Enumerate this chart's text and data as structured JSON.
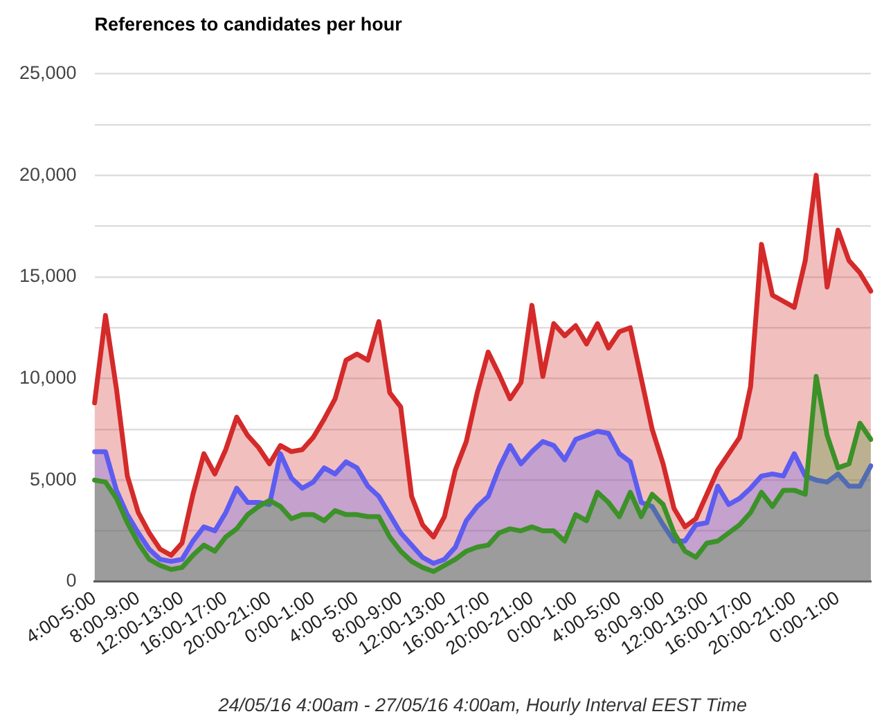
{
  "chart_data": {
    "type": "area",
    "title": "References to candidates per hour",
    "xlabel": "24/05/16 4:00am - 27/05/16 4:00am, Hourly Interval EEST Time",
    "categories": [
      "4:00-5:00",
      null,
      null,
      null,
      "8:00-9:00",
      null,
      null,
      null,
      "12:00-13:00",
      null,
      null,
      null,
      "16:00-17:00",
      null,
      null,
      null,
      "20:00-21:00",
      null,
      null,
      null,
      "0:00-1:00",
      null,
      null,
      null,
      "4:00-5:00",
      null,
      null,
      null,
      "8:00-9:00",
      null,
      null,
      null,
      "12:00-13:00",
      null,
      null,
      null,
      "16:00-17:00",
      null,
      null,
      null,
      "20:00-21:00",
      null,
      null,
      null,
      "0:00-1:00",
      null,
      null,
      null,
      "4:00-5:00",
      null,
      null,
      null,
      "8:00-9:00",
      null,
      null,
      null,
      "12:00-13:00",
      null,
      null,
      null,
      "16:00-17:00",
      null,
      null,
      null,
      "20:00-21:00",
      null,
      null,
      null,
      "0:00-1:00",
      null,
      null,
      null
    ],
    "series": [
      {
        "color": "#d42a2a",
        "values": [
          8800,
          13100,
          9500,
          5200,
          3400,
          2400,
          1600,
          1300,
          1900,
          4300,
          6300,
          5300,
          6500,
          8100,
          7200,
          6600,
          5800,
          6700,
          6400,
          6500,
          7100,
          8000,
          9000,
          10900,
          11200,
          10900,
          12800,
          9300,
          8600,
          4200,
          2800,
          2200,
          3200,
          5500,
          6900,
          9300,
          11300,
          10200,
          9000,
          9800,
          13600,
          10100,
          12700,
          12100,
          12600,
          11700,
          12700,
          11500,
          12300,
          12500,
          10000,
          7500,
          5800,
          3600,
          2700,
          3100,
          4300,
          5500,
          6300,
          7100,
          9600,
          16600,
          14100,
          13800,
          13500,
          15800,
          20000,
          14500,
          17300,
          15800,
          15200,
          14300
        ]
      },
      {
        "color": "#5c5cf0",
        "values": [
          6400,
          6400,
          4500,
          3300,
          2400,
          1600,
          1100,
          1000,
          1100,
          2000,
          2700,
          2500,
          3400,
          4600,
          3900,
          3900,
          3800,
          6300,
          5100,
          4600,
          4900,
          5600,
          5300,
          5900,
          5600,
          4700,
          4200,
          3300,
          2400,
          1800,
          1200,
          900,
          1100,
          1700,
          3000,
          3700,
          4200,
          5600,
          6700,
          5800,
          6400,
          6900,
          6700,
          6000,
          7000,
          7200,
          7400,
          7300,
          6300,
          5900,
          3900,
          3700,
          2800,
          2000,
          2000,
          2800,
          2900,
          4700,
          3800,
          4100,
          4600,
          5200,
          5300,
          5200,
          6300,
          5200,
          5000,
          4900,
          5300,
          4700,
          4700,
          5700
        ]
      },
      {
        "color": "#3c9128",
        "values": [
          5000,
          4900,
          4100,
          2900,
          1900,
          1100,
          800,
          600,
          700,
          1300,
          1800,
          1500,
          2200,
          2600,
          3300,
          3700,
          4000,
          3700,
          3100,
          3300,
          3300,
          3000,
          3500,
          3300,
          3300,
          3200,
          3200,
          2200,
          1500,
          1000,
          700,
          500,
          800,
          1100,
          1500,
          1700,
          1800,
          2400,
          2600,
          2500,
          2700,
          2500,
          2500,
          2000,
          3300,
          3000,
          4400,
          3900,
          3200,
          4400,
          3200,
          4300,
          3800,
          2400,
          1500,
          1200,
          1900,
          2000,
          2400,
          2800,
          3400,
          4400,
          3700,
          4500,
          4500,
          4300,
          10100,
          7200,
          5600,
          5800,
          7800,
          7000
        ]
      }
    ],
    "ylim": [
      0,
      25000
    ],
    "yticks": [
      0,
      {
        "value": 2500,
        "label": null
      },
      {
        "value": 5000,
        "label": "5,000"
      },
      {
        "value": 7500,
        "label": null
      },
      {
        "value": 10000,
        "label": "10,000"
      },
      {
        "value": 12500,
        "label": null
      },
      {
        "value": 15000,
        "label": "15,000"
      },
      {
        "value": 17500,
        "label": null
      },
      {
        "value": 20000,
        "label": "20,000"
      },
      {
        "value": 22500,
        "label": null
      },
      {
        "value": 25000,
        "label": "25,000"
      }
    ],
    "grid": "y",
    "marker": "none"
  }
}
